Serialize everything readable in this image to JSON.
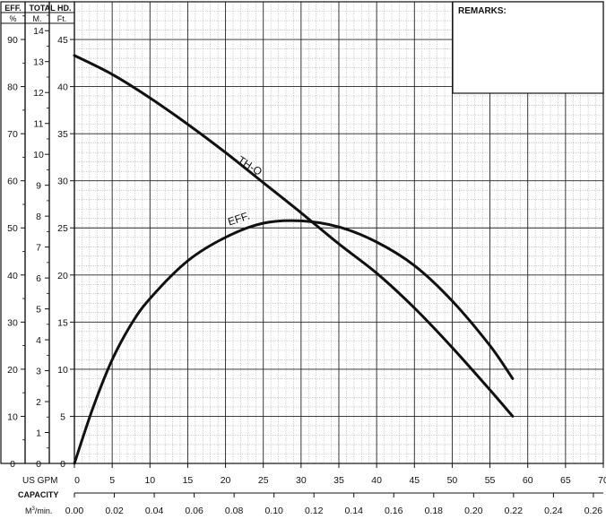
{
  "header": {
    "eff_label": "EFF.",
    "eff_unit": "%",
    "total_hd_label": "TOTAL HD.",
    "m_unit": "M.",
    "ft_unit": "Ft."
  },
  "remarks": {
    "title": "REMARKS:"
  },
  "capacity": {
    "us_gpm_label": "US GPM",
    "capacity_label": "CAPACITY",
    "m3_label": "M",
    "m3_sup": "3",
    "m3_suffix": "/min."
  },
  "chart_data": {
    "type": "line",
    "title": "",
    "x_gpm_ticks": [
      "0",
      "5",
      "10",
      "15",
      "20",
      "25",
      "30",
      "35",
      "40",
      "45",
      "50",
      "55",
      "60",
      "65",
      "70"
    ],
    "x_m3_ticks": [
      "0.00",
      "0.02",
      "0.04",
      "0.06",
      "0.08",
      "0.10",
      "0.12",
      "0.14",
      "0.16",
      "0.18",
      "0.20",
      "0.22",
      "0.24",
      "0.26"
    ],
    "eff_ticks": [
      "0",
      "10",
      "20",
      "30",
      "40",
      "50",
      "60",
      "70",
      "80",
      "90"
    ],
    "m_ticks": [
      "0",
      "1",
      "2",
      "3",
      "4",
      "5",
      "6",
      "7",
      "8",
      "9",
      "10",
      "11",
      "12",
      "13",
      "14"
    ],
    "ft_ticks": [
      "0",
      "5",
      "10",
      "15",
      "20",
      "25",
      "30",
      "35",
      "40",
      "45"
    ],
    "xlim_gpm": [
      0,
      70
    ],
    "ylim_ft": [
      0,
      49
    ],
    "ylim_eff": [
      0,
      98
    ],
    "grid": true,
    "series": [
      {
        "name": "TH-Q",
        "y_axis": "ft",
        "x": [
          0,
          5,
          10,
          15,
          20,
          25,
          30,
          35,
          40,
          45,
          50,
          55,
          58
        ],
        "y": [
          43.3,
          41.3,
          38.8,
          36.0,
          33.0,
          29.8,
          26.6,
          23.3,
          20.2,
          16.5,
          12.3,
          7.8,
          5.0
        ]
      },
      {
        "name": "EFF.",
        "y_axis": "eff",
        "x": [
          0,
          2.5,
          5,
          7.5,
          10,
          15,
          20,
          25,
          30,
          35,
          40,
          45,
          50,
          55,
          58
        ],
        "y": [
          0,
          12,
          22,
          29.5,
          35,
          43,
          48,
          51,
          51.5,
          50.2,
          47,
          42,
          34.5,
          25,
          18
        ]
      }
    ]
  }
}
